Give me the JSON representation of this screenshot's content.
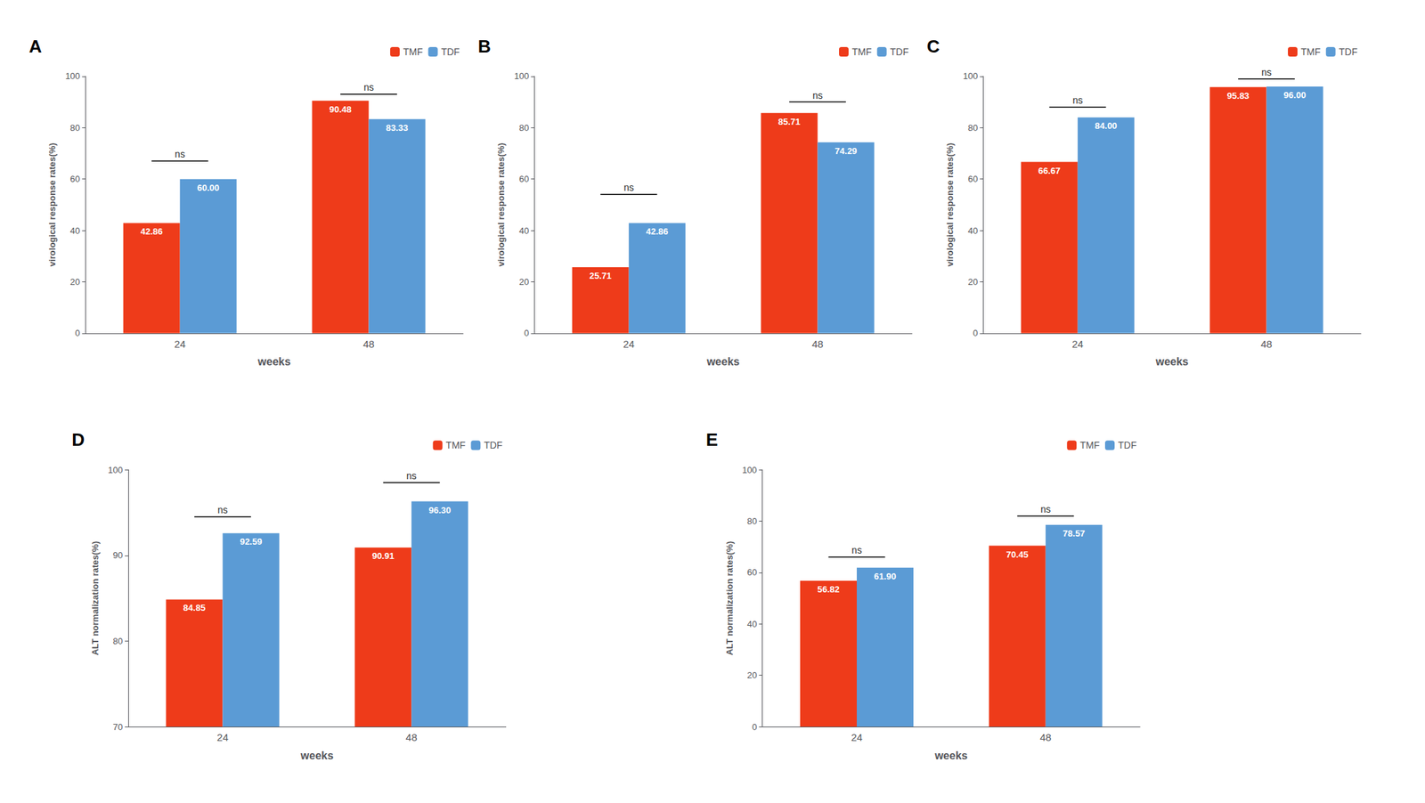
{
  "chart_data": [
    {
      "type": "bar",
      "title": "A",
      "categories": [
        "24",
        "48"
      ],
      "series": [
        {
          "name": "TMF",
          "color": "#EE3B1A",
          "values": [
            42.86,
            90.48
          ],
          "value_labels": [
            "42.86",
            "90.48"
          ]
        },
        {
          "name": "TDF",
          "color": "#5B9BD5",
          "values": [
            60.0,
            83.33
          ],
          "value_labels": [
            "60.00",
            "83.33"
          ]
        }
      ],
      "xlabel": "weeks",
      "ylabel": "virological response rates(%)",
      "ylim": [
        0,
        100
      ],
      "yticks": [
        0,
        20,
        40,
        60,
        80,
        100
      ],
      "data_labels": true,
      "legend": "upper right",
      "grid": false,
      "annotations": [
        {
          "text": "ns",
          "x": "24",
          "y": 67
        },
        {
          "text": "ns",
          "x": "48",
          "y": 93
        }
      ]
    },
    {
      "type": "bar",
      "title": "B",
      "categories": [
        "24",
        "48"
      ],
      "series": [
        {
          "name": "TMF",
          "color": "#EE3B1A",
          "values": [
            25.71,
            85.71
          ],
          "value_labels": [
            "25.71",
            "85.71"
          ]
        },
        {
          "name": "TDF",
          "color": "#5B9BD5",
          "values": [
            42.86,
            74.29
          ],
          "value_labels": [
            "42.86",
            "74.29"
          ]
        }
      ],
      "xlabel": "weeks",
      "ylabel": "virological response rates(%)",
      "ylim": [
        0,
        100
      ],
      "yticks": [
        0,
        20,
        40,
        60,
        80,
        100
      ],
      "data_labels": true,
      "legend": "upper right",
      "grid": false,
      "annotations": [
        {
          "text": "ns",
          "x": "24",
          "y": 54
        },
        {
          "text": "ns",
          "x": "48",
          "y": 90
        }
      ]
    },
    {
      "type": "bar",
      "title": "C",
      "categories": [
        "24",
        "48"
      ],
      "series": [
        {
          "name": "TMF",
          "color": "#EE3B1A",
          "values": [
            66.67,
            95.83
          ],
          "value_labels": [
            "66.67",
            "95.83"
          ]
        },
        {
          "name": "TDF",
          "color": "#5B9BD5",
          "values": [
            84.0,
            96.0
          ],
          "value_labels": [
            "84.00",
            "96.00"
          ]
        }
      ],
      "xlabel": "weeks",
      "ylabel": "virological response rates(%)",
      "ylim": [
        0,
        100
      ],
      "yticks": [
        0,
        20,
        40,
        60,
        80,
        100
      ],
      "data_labels": true,
      "legend": "upper right",
      "grid": false,
      "annotations": [
        {
          "text": "ns",
          "x": "24",
          "y": 88
        },
        {
          "text": "ns",
          "x": "48",
          "y": 99
        }
      ]
    },
    {
      "type": "bar",
      "title": "D",
      "categories": [
        "24",
        "48"
      ],
      "series": [
        {
          "name": "TMF",
          "color": "#EE3B1A",
          "values": [
            84.85,
            90.91
          ],
          "value_labels": [
            "84.85",
            "90.91"
          ]
        },
        {
          "name": "TDF",
          "color": "#5B9BD5",
          "values": [
            92.59,
            96.3
          ],
          "value_labels": [
            "92.59",
            "96.30"
          ]
        }
      ],
      "xlabel": "weeks",
      "ylabel": "ALT normalization rates(%)",
      "ylim": [
        70,
        100
      ],
      "yticks": [
        70,
        80,
        90,
        100
      ],
      "data_labels": true,
      "legend": "upper right",
      "grid": false,
      "annotations": [
        {
          "text": "ns",
          "x": "24",
          "y": 94.5
        },
        {
          "text": "ns",
          "x": "48",
          "y": 98.5
        }
      ]
    },
    {
      "type": "bar",
      "title": "E",
      "categories": [
        "24",
        "48"
      ],
      "series": [
        {
          "name": "TMF",
          "color": "#EE3B1A",
          "values": [
            56.82,
            70.45
          ],
          "value_labels": [
            "56.82",
            "70.45"
          ]
        },
        {
          "name": "TDF",
          "color": "#5B9BD5",
          "values": [
            61.9,
            78.57
          ],
          "value_labels": [
            "61.90",
            "78.57"
          ]
        }
      ],
      "xlabel": "weeks",
      "ylabel": "ALT normalization rates(%)",
      "ylim": [
        0,
        100
      ],
      "yticks": [
        0,
        20,
        40,
        60,
        80,
        100
      ],
      "data_labels": true,
      "legend": "upper right",
      "grid": false,
      "annotations": [
        {
          "text": "ns",
          "x": "24",
          "y": 66
        },
        {
          "text": "ns",
          "x": "48",
          "y": 82
        }
      ]
    }
  ]
}
